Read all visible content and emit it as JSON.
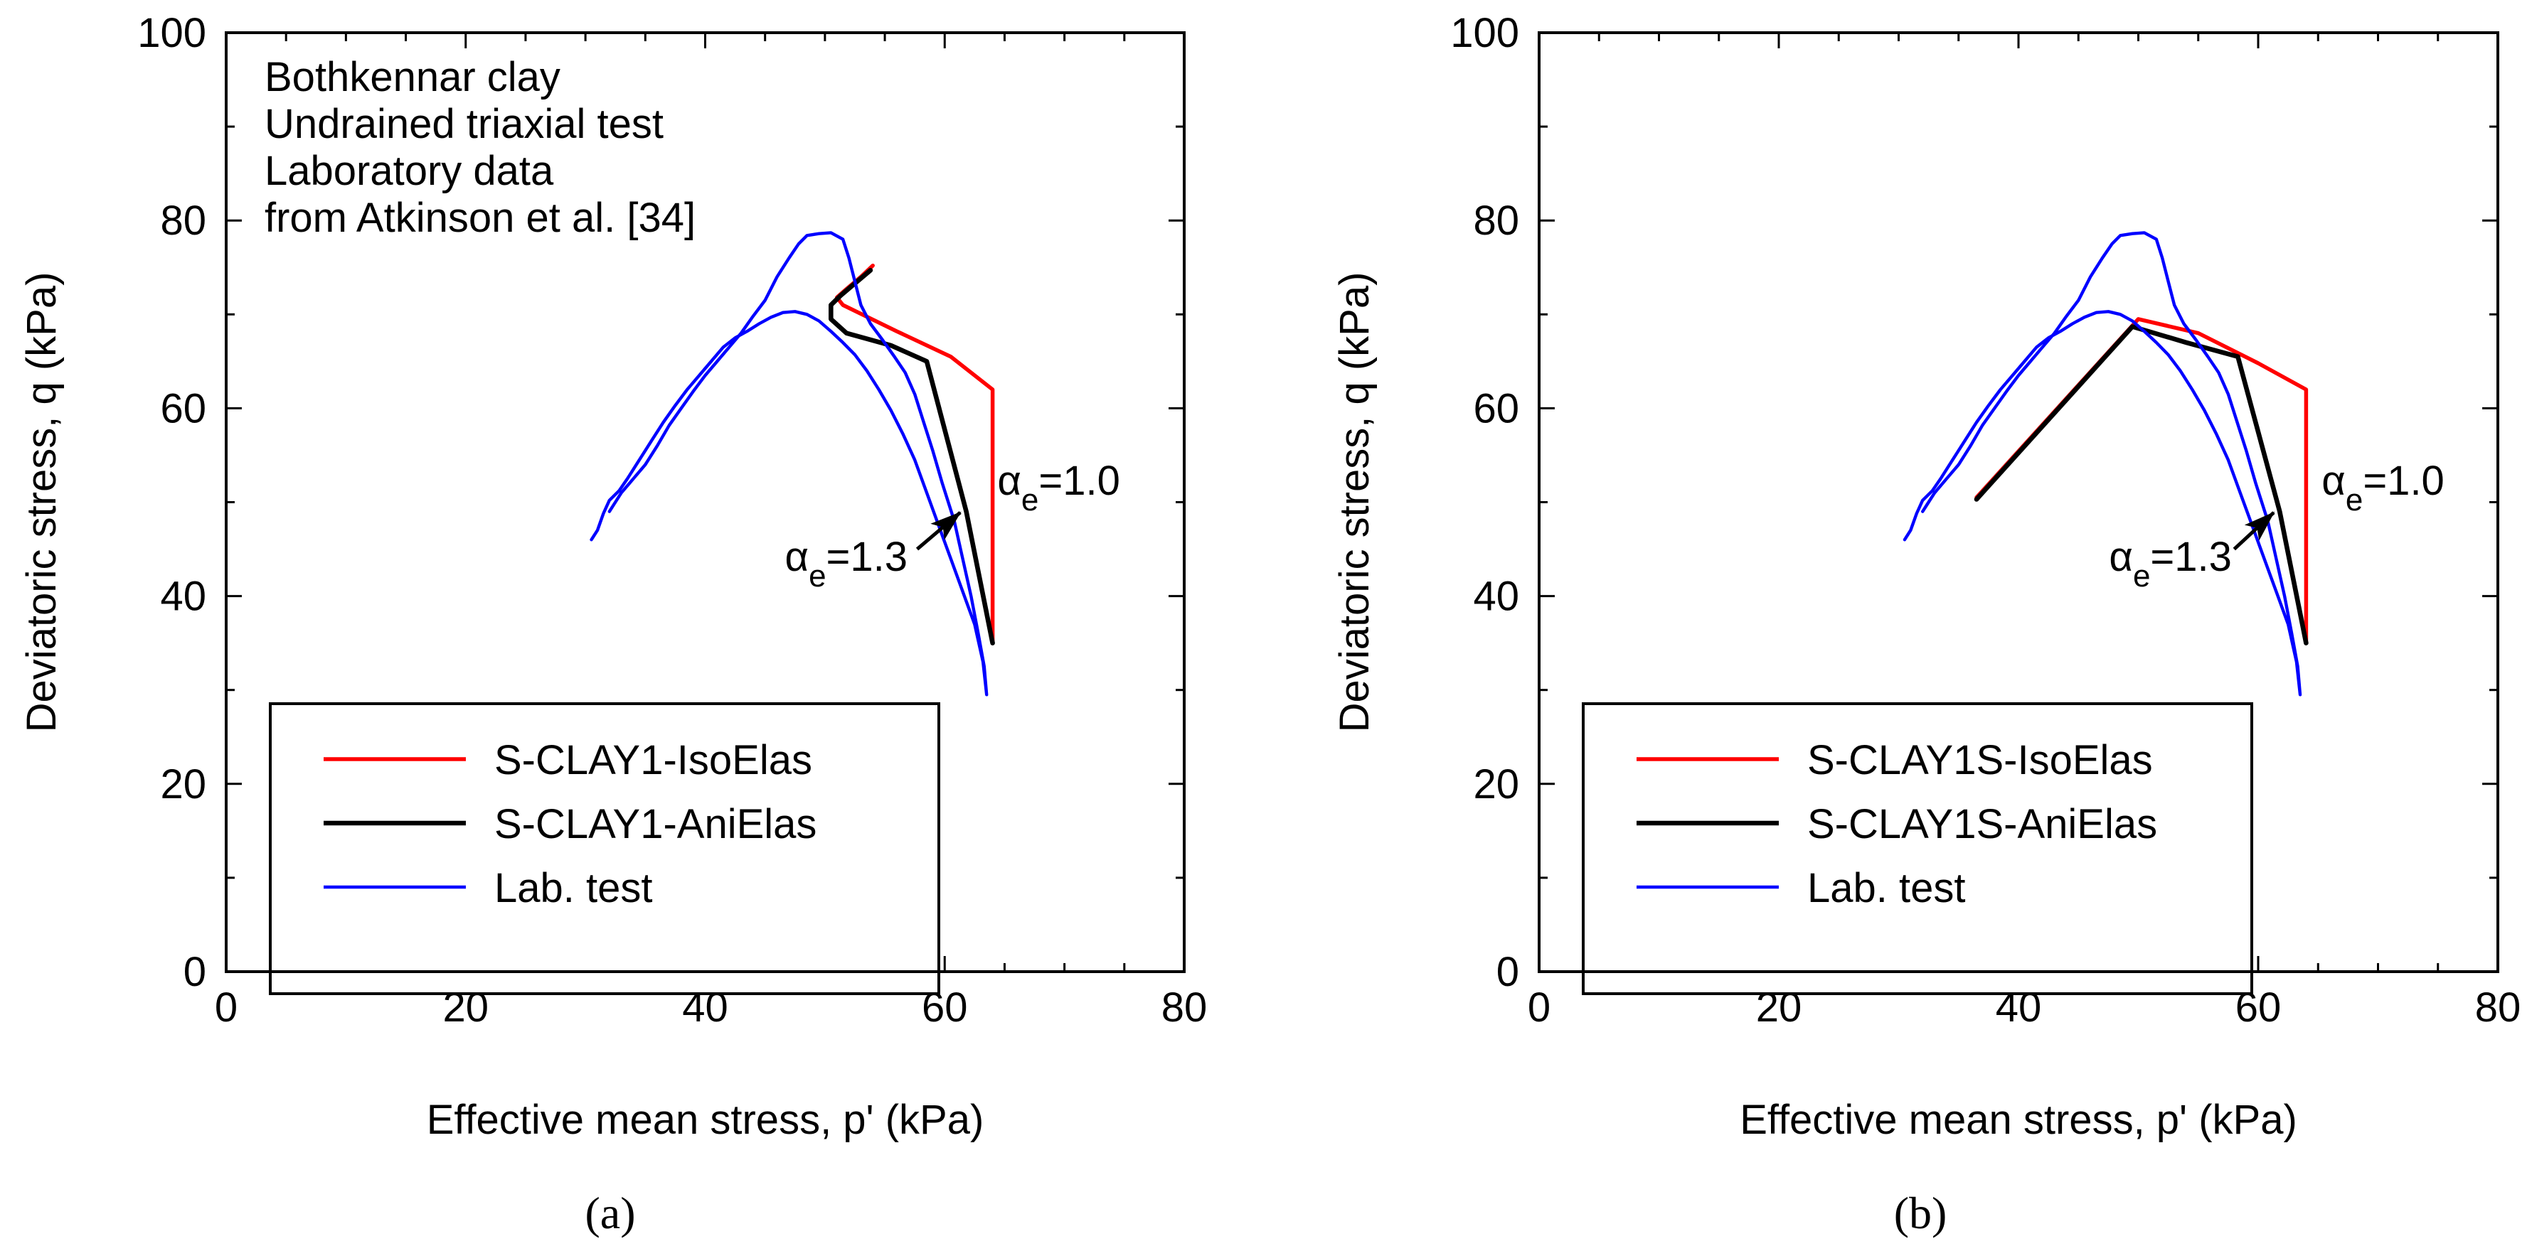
{
  "figure": {
    "panel_labels": [
      "(a)",
      "(b)"
    ],
    "colors": {
      "iso": "#ff0000",
      "ani": "#000000",
      "lab": "#0000ff"
    }
  },
  "chart_data": [
    {
      "type": "line",
      "panel": "(a)",
      "xlabel": "Effective mean stress, p' (kPa)",
      "ylabel": "Deviatoric stress, q (kPa)",
      "xlim": [
        0,
        80
      ],
      "ylim": [
        0,
        100
      ],
      "xticks": [
        0,
        20,
        40,
        60,
        80
      ],
      "yticks": [
        0,
        20,
        40,
        60,
        80,
        100
      ],
      "info_text": [
        "Bothkennar clay",
        "Undrained triaxial test",
        "Laboratory data",
        "from Atkinson et al. [34]"
      ],
      "annotations": [
        {
          "base": "α",
          "sub": "e",
          "rest": "=1.0",
          "x": 64.4,
          "y": 50.8,
          "anchor": "start"
        },
        {
          "base": "α",
          "sub": "e",
          "rest": "=1.3",
          "x": 56.9,
          "y": 42.7,
          "anchor": "end",
          "arrow": [
            [
              57.7,
              45.0
            ],
            [
              61.3,
              48.9
            ]
          ]
        }
      ],
      "legend_position": "bottom-left",
      "series": [
        {
          "name": "S-CLAY1-IsoElas",
          "color": "#ff0000",
          "width": 2.5,
          "points": [
            [
              64,
              35
            ],
            [
              64,
              62
            ],
            [
              60.5,
              65.5
            ],
            [
              56,
              68.2
            ],
            [
              51.5,
              71
            ],
            [
              51,
              71.8
            ],
            [
              51.8,
              72.7
            ],
            [
              53,
              74
            ],
            [
              54,
              75.2
            ]
          ]
        },
        {
          "name": "S-CLAY1-AniElas",
          "color": "#000000",
          "width": 3,
          "points": [
            [
              64,
              35
            ],
            [
              61.8,
              49
            ],
            [
              58.5,
              65
            ],
            [
              55.5,
              66.7
            ],
            [
              51.8,
              68
            ],
            [
              50.5,
              69.5
            ],
            [
              50.5,
              71
            ],
            [
              51.3,
              72
            ],
            [
              52.5,
              73.3
            ],
            [
              53.8,
              74.7
            ]
          ]
        },
        {
          "name": "Lab. test",
          "color": "#0000ff",
          "width": 2,
          "points": [
            [
              30.5,
              46
            ],
            [
              31,
              47
            ],
            [
              31.5,
              48.8
            ],
            [
              32,
              50.2
            ],
            [
              32.8,
              51.2
            ],
            [
              33.5,
              52.5
            ],
            [
              34.5,
              54.5
            ],
            [
              35.5,
              56.5
            ],
            [
              36.5,
              58.5
            ],
            [
              37.5,
              60.3
            ],
            [
              38.5,
              62
            ],
            [
              39.5,
              63.5
            ],
            [
              40.5,
              65
            ],
            [
              41.5,
              66.5
            ],
            [
              42.5,
              67.5
            ],
            [
              43.5,
              68.2
            ],
            [
              44.5,
              69
            ],
            [
              45.5,
              69.7
            ],
            [
              46.5,
              70.2
            ],
            [
              47.5,
              70.3
            ],
            [
              48.5,
              70
            ],
            [
              49.5,
              69.3
            ],
            [
              50.5,
              68.2
            ],
            [
              51.5,
              67
            ],
            [
              52.5,
              65.7
            ],
            [
              53.5,
              64
            ],
            [
              54.5,
              62
            ],
            [
              55.5,
              59.8
            ],
            [
              56.5,
              57.3
            ],
            [
              57.5,
              54.5
            ],
            [
              58.5,
              51
            ],
            [
              59.5,
              47.5
            ],
            [
              60.5,
              44
            ],
            [
              61.5,
              40.5
            ],
            [
              62.5,
              37
            ],
            [
              63.2,
              33
            ],
            [
              63.5,
              29.5
            ],
            [
              63.3,
              32.5
            ],
            [
              62.8,
              36
            ],
            [
              62.2,
              40
            ],
            [
              61.5,
              44
            ],
            [
              60.8,
              48
            ],
            [
              59.8,
              52
            ],
            [
              59,
              55.5
            ],
            [
              58.2,
              58.7
            ],
            [
              57.5,
              61.5
            ],
            [
              56.7,
              63.8
            ],
            [
              55.8,
              65.5
            ],
            [
              54.8,
              67.3
            ],
            [
              53.8,
              69
            ],
            [
              53,
              71
            ],
            [
              52.5,
              73.5
            ],
            [
              52,
              76
            ],
            [
              51.5,
              78
            ],
            [
              50.5,
              78.7
            ],
            [
              49.5,
              78.6
            ],
            [
              48.5,
              78.4
            ],
            [
              47.8,
              77.5
            ],
            [
              47,
              76
            ],
            [
              46,
              74
            ],
            [
              45,
              71.5
            ],
            [
              44,
              69.8
            ],
            [
              43,
              68
            ],
            [
              42,
              66.5
            ],
            [
              41,
              65
            ],
            [
              40,
              63.5
            ],
            [
              39,
              61.8
            ],
            [
              38,
              60
            ],
            [
              37,
              58.2
            ],
            [
              36,
              56
            ],
            [
              35,
              54
            ],
            [
              34,
              52.5
            ],
            [
              33,
              51
            ],
            [
              32.5,
              50
            ],
            [
              32,
              49
            ]
          ]
        }
      ]
    },
    {
      "type": "line",
      "panel": "(b)",
      "xlabel": "Effective mean stress, p' (kPa)",
      "ylabel": "Deviatoric stress, q (kPa)",
      "xlim": [
        0,
        80
      ],
      "ylim": [
        0,
        100
      ],
      "xticks": [
        0,
        20,
        40,
        60,
        80
      ],
      "yticks": [
        0,
        20,
        40,
        60,
        80,
        100
      ],
      "info_text": [],
      "annotations": [
        {
          "base": "α",
          "sub": "e",
          "rest": "=1.0",
          "x": 65.3,
          "y": 50.8,
          "anchor": "start"
        },
        {
          "base": "α",
          "sub": "e",
          "rest": "=1.3",
          "x": 57.8,
          "y": 42.7,
          "anchor": "end",
          "arrow": [
            [
              58.0,
              45.0
            ],
            [
              61.3,
              48.9
            ]
          ]
        }
      ],
      "legend_position": "bottom-left",
      "series": [
        {
          "name": "S-CLAY1S-IsoElas",
          "color": "#ff0000",
          "width": 2.5,
          "points": [
            [
              36.5,
              50.5
            ],
            [
              50,
              69.5
            ],
            [
              55,
              68
            ],
            [
              60,
              64.8
            ],
            [
              64,
              62
            ],
            [
              64,
              35
            ]
          ]
        },
        {
          "name": "S-CLAY1S-AniElas",
          "color": "#000000",
          "width": 3,
          "points": [
            [
              36.5,
              50.3
            ],
            [
              49.5,
              68.7
            ],
            [
              54,
              67
            ],
            [
              58.3,
              65.5
            ],
            [
              61.8,
              49
            ],
            [
              64,
              35
            ]
          ]
        },
        {
          "name": "Lab. test",
          "color": "#0000ff",
          "width": 2,
          "points": [
            [
              30.5,
              46
            ],
            [
              31,
              47
            ],
            [
              31.5,
              48.8
            ],
            [
              32,
              50.2
            ],
            [
              32.8,
              51.2
            ],
            [
              33.5,
              52.5
            ],
            [
              34.5,
              54.5
            ],
            [
              35.5,
              56.5
            ],
            [
              36.5,
              58.5
            ],
            [
              37.5,
              60.3
            ],
            [
              38.5,
              62
            ],
            [
              39.5,
              63.5
            ],
            [
              40.5,
              65
            ],
            [
              41.5,
              66.5
            ],
            [
              42.5,
              67.5
            ],
            [
              43.5,
              68.2
            ],
            [
              44.5,
              69
            ],
            [
              45.5,
              69.7
            ],
            [
              46.5,
              70.2
            ],
            [
              47.5,
              70.3
            ],
            [
              48.5,
              70
            ],
            [
              49.5,
              69.3
            ],
            [
              50.5,
              68.2
            ],
            [
              51.5,
              67
            ],
            [
              52.5,
              65.7
            ],
            [
              53.5,
              64
            ],
            [
              54.5,
              62
            ],
            [
              55.5,
              59.8
            ],
            [
              56.5,
              57.3
            ],
            [
              57.5,
              54.5
            ],
            [
              58.5,
              51
            ],
            [
              59.5,
              47.5
            ],
            [
              60.5,
              44
            ],
            [
              61.5,
              40.5
            ],
            [
              62.5,
              37
            ],
            [
              63.2,
              33
            ],
            [
              63.5,
              29.5
            ],
            [
              63.3,
              32.5
            ],
            [
              62.8,
              36
            ],
            [
              62.2,
              40
            ],
            [
              61.5,
              44
            ],
            [
              60.8,
              48
            ],
            [
              59.8,
              52
            ],
            [
              59,
              55.5
            ],
            [
              58.2,
              58.7
            ],
            [
              57.5,
              61.5
            ],
            [
              56.7,
              63.8
            ],
            [
              55.8,
              65.5
            ],
            [
              54.8,
              67.3
            ],
            [
              53.8,
              69
            ],
            [
              53,
              71
            ],
            [
              52.5,
              73.5
            ],
            [
              52,
              76
            ],
            [
              51.5,
              78
            ],
            [
              50.5,
              78.7
            ],
            [
              49.5,
              78.6
            ],
            [
              48.5,
              78.4
            ],
            [
              47.8,
              77.5
            ],
            [
              47,
              76
            ],
            [
              46,
              74
            ],
            [
              45,
              71.5
            ],
            [
              44,
              69.8
            ],
            [
              43,
              68
            ],
            [
              42,
              66.5
            ],
            [
              41,
              65
            ],
            [
              40,
              63.5
            ],
            [
              39,
              61.8
            ],
            [
              38,
              60
            ],
            [
              37,
              58.2
            ],
            [
              36,
              56
            ],
            [
              35,
              54
            ],
            [
              34,
              52.5
            ],
            [
              33,
              51
            ],
            [
              32.5,
              50
            ],
            [
              32,
              49
            ]
          ]
        }
      ]
    }
  ]
}
